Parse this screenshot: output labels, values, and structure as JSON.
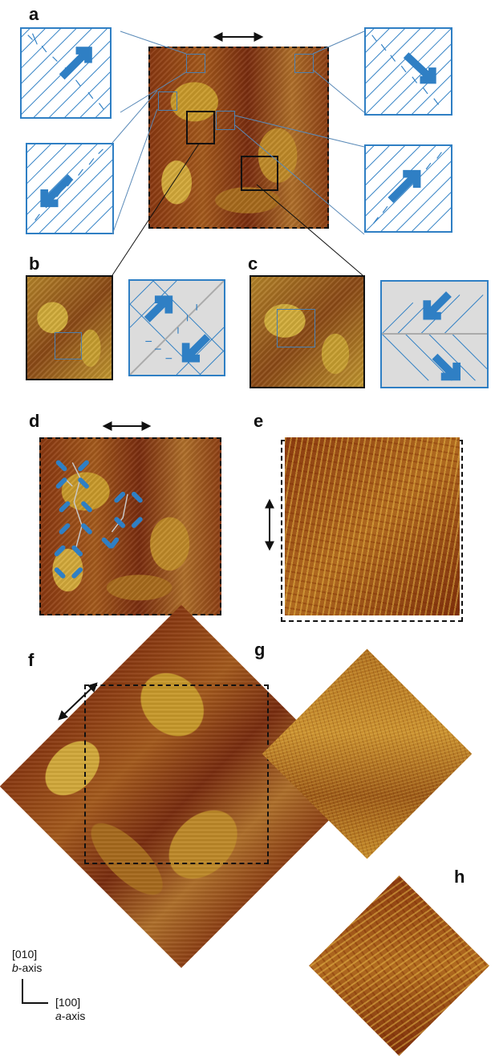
{
  "figure": {
    "panel_labels": {
      "a": "a",
      "b": "b",
      "c": "c",
      "d": "d",
      "e": "e",
      "f": "f",
      "g": "g",
      "h": "h"
    },
    "axes_legend": {
      "b_direction": "[010]",
      "b_axis_prefix": "b",
      "b_axis_suffix": "-axis",
      "a_direction": "[100]",
      "a_axis_prefix": "a",
      "a_axis_suffix": "-axis"
    },
    "colors": {
      "schematic_blue": "#1f77c8",
      "afm_dark_brown": "#7a2c0e",
      "afm_yellow": "#d2ad3a"
    }
  }
}
